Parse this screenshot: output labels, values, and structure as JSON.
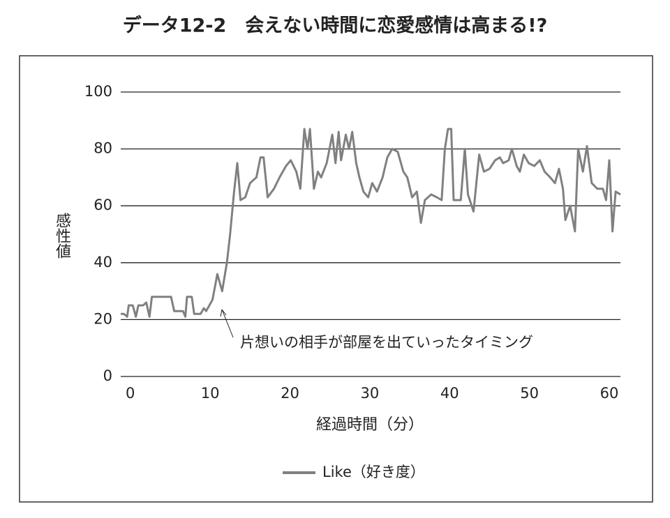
{
  "chart_data": {
    "type": "line",
    "title": "データ12-2　会えない時間に恋愛感情は高まる!?",
    "y_label": "感性値",
    "x_label": "経過時間（分）",
    "annotation": "片想いの相手が部屋を出ていったタイミング",
    "x": [
      -1.2,
      -0.8,
      -0.4,
      -0.2,
      0.3,
      0.7,
      1.0,
      1.6,
      2.0,
      2.4,
      2.7,
      3.8,
      5.1,
      5.5,
      6.6,
      6.9,
      7.1,
      7.7,
      8.0,
      8.8,
      9.2,
      9.5,
      9.9,
      10.3,
      10.9,
      11.5,
      12.1,
      12.5,
      13.0,
      13.4,
      13.8,
      14.4,
      15.0,
      15.8,
      16.3,
      16.7,
      17.2,
      18.0,
      18.7,
      19.5,
      20.1,
      20.8,
      21.3,
      21.8,
      22.2,
      22.5,
      23.0,
      23.5,
      23.9,
      24.6,
      25.3,
      25.7,
      26.1,
      26.4,
      27.0,
      27.4,
      27.8,
      28.3,
      28.7,
      29.2,
      29.8,
      30.3,
      30.9,
      31.6,
      32.2,
      32.8,
      33.5,
      34.2,
      34.7,
      35.3,
      35.9,
      36.4,
      36.9,
      37.7,
      38.4,
      39.0,
      39.4,
      39.8,
      40.2,
      40.5,
      41.4,
      41.9,
      42.3,
      43.0,
      43.7,
      44.3,
      45.0,
      45.7,
      46.3,
      46.7,
      47.4,
      47.8,
      48.4,
      48.8,
      49.3,
      49.9,
      50.6,
      51.3,
      51.9,
      52.6,
      53.2,
      53.7,
      54.2,
      54.5,
      55.1,
      55.7,
      56.1,
      56.7,
      57.2,
      57.8,
      58.5,
      59.2,
      59.6,
      60.0,
      60.4,
      60.8,
      61.4
    ],
    "series": [
      {
        "name": "Like（好き度）",
        "color": "#808080",
        "values": [
          22,
          22,
          21,
          25,
          25,
          21,
          25,
          25,
          26,
          21,
          28,
          28,
          28,
          23,
          23,
          21,
          28,
          28,
          22,
          22,
          24,
          23,
          25,
          27,
          36,
          30,
          40,
          50,
          65,
          75,
          62,
          63,
          68,
          70,
          77,
          77,
          63,
          66,
          70,
          74,
          76,
          72,
          66,
          87,
          80,
          87,
          66,
          72,
          70,
          75,
          85,
          75,
          86,
          76,
          85,
          80,
          86,
          75,
          70,
          65,
          63,
          68,
          65,
          70,
          77,
          80,
          79,
          72,
          70,
          63,
          65,
          54,
          62,
          64,
          63,
          62,
          80,
          87,
          87,
          62,
          62,
          80,
          64,
          58,
          78,
          72,
          73,
          76,
          77,
          75,
          76,
          80,
          74,
          72,
          78,
          75,
          74,
          76,
          72,
          70,
          68,
          73,
          66,
          55,
          60,
          51,
          80,
          72,
          81,
          68,
          66,
          66,
          62,
          76,
          51,
          65,
          64
        ]
      }
    ],
    "xlim": [
      -1.2,
      61.4
    ],
    "ylim": [
      0,
      100
    ],
    "xticks": [
      0,
      10,
      20,
      30,
      40,
      50,
      60
    ],
    "yticks": [
      0,
      20,
      40,
      60,
      80,
      100
    ],
    "grid": true
  }
}
